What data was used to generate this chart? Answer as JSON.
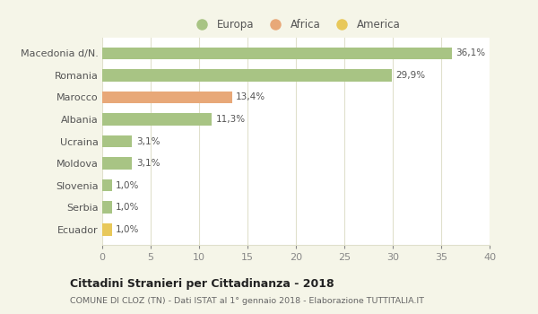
{
  "categories": [
    "Macedonia d/N.",
    "Romania",
    "Marocco",
    "Albania",
    "Ucraina",
    "Moldova",
    "Slovenia",
    "Serbia",
    "Ecuador"
  ],
  "values": [
    36.1,
    29.9,
    13.4,
    11.3,
    3.1,
    3.1,
    1.0,
    1.0,
    1.0
  ],
  "labels": [
    "36,1%",
    "29,9%",
    "13,4%",
    "11,3%",
    "3,1%",
    "3,1%",
    "1,0%",
    "1,0%",
    "1,0%"
  ],
  "colors": [
    "#a8c484",
    "#a8c484",
    "#e8a878",
    "#a8c484",
    "#a8c484",
    "#a8c484",
    "#a8c484",
    "#a8c484",
    "#e8c85a"
  ],
  "legend": [
    {
      "label": "Europa",
      "color": "#a8c484"
    },
    {
      "label": "Africa",
      "color": "#e8a878"
    },
    {
      "label": "America",
      "color": "#e8c85a"
    }
  ],
  "xlim": [
    0,
    40
  ],
  "xticks": [
    0,
    5,
    10,
    15,
    20,
    25,
    30,
    35,
    40
  ],
  "title": "Cittadini Stranieri per Cittadinanza - 2018",
  "subtitle": "COMUNE DI CLOZ (TN) - Dati ISTAT al 1° gennaio 2018 - Elaborazione TUTTITALIA.IT",
  "background_color": "#f5f5e8",
  "plot_background": "#ffffff",
  "grid_color": "#e0e0cc",
  "bar_height": 0.55,
  "label_fontsize": 7.5,
  "ytick_fontsize": 8.0,
  "xtick_fontsize": 8.0
}
